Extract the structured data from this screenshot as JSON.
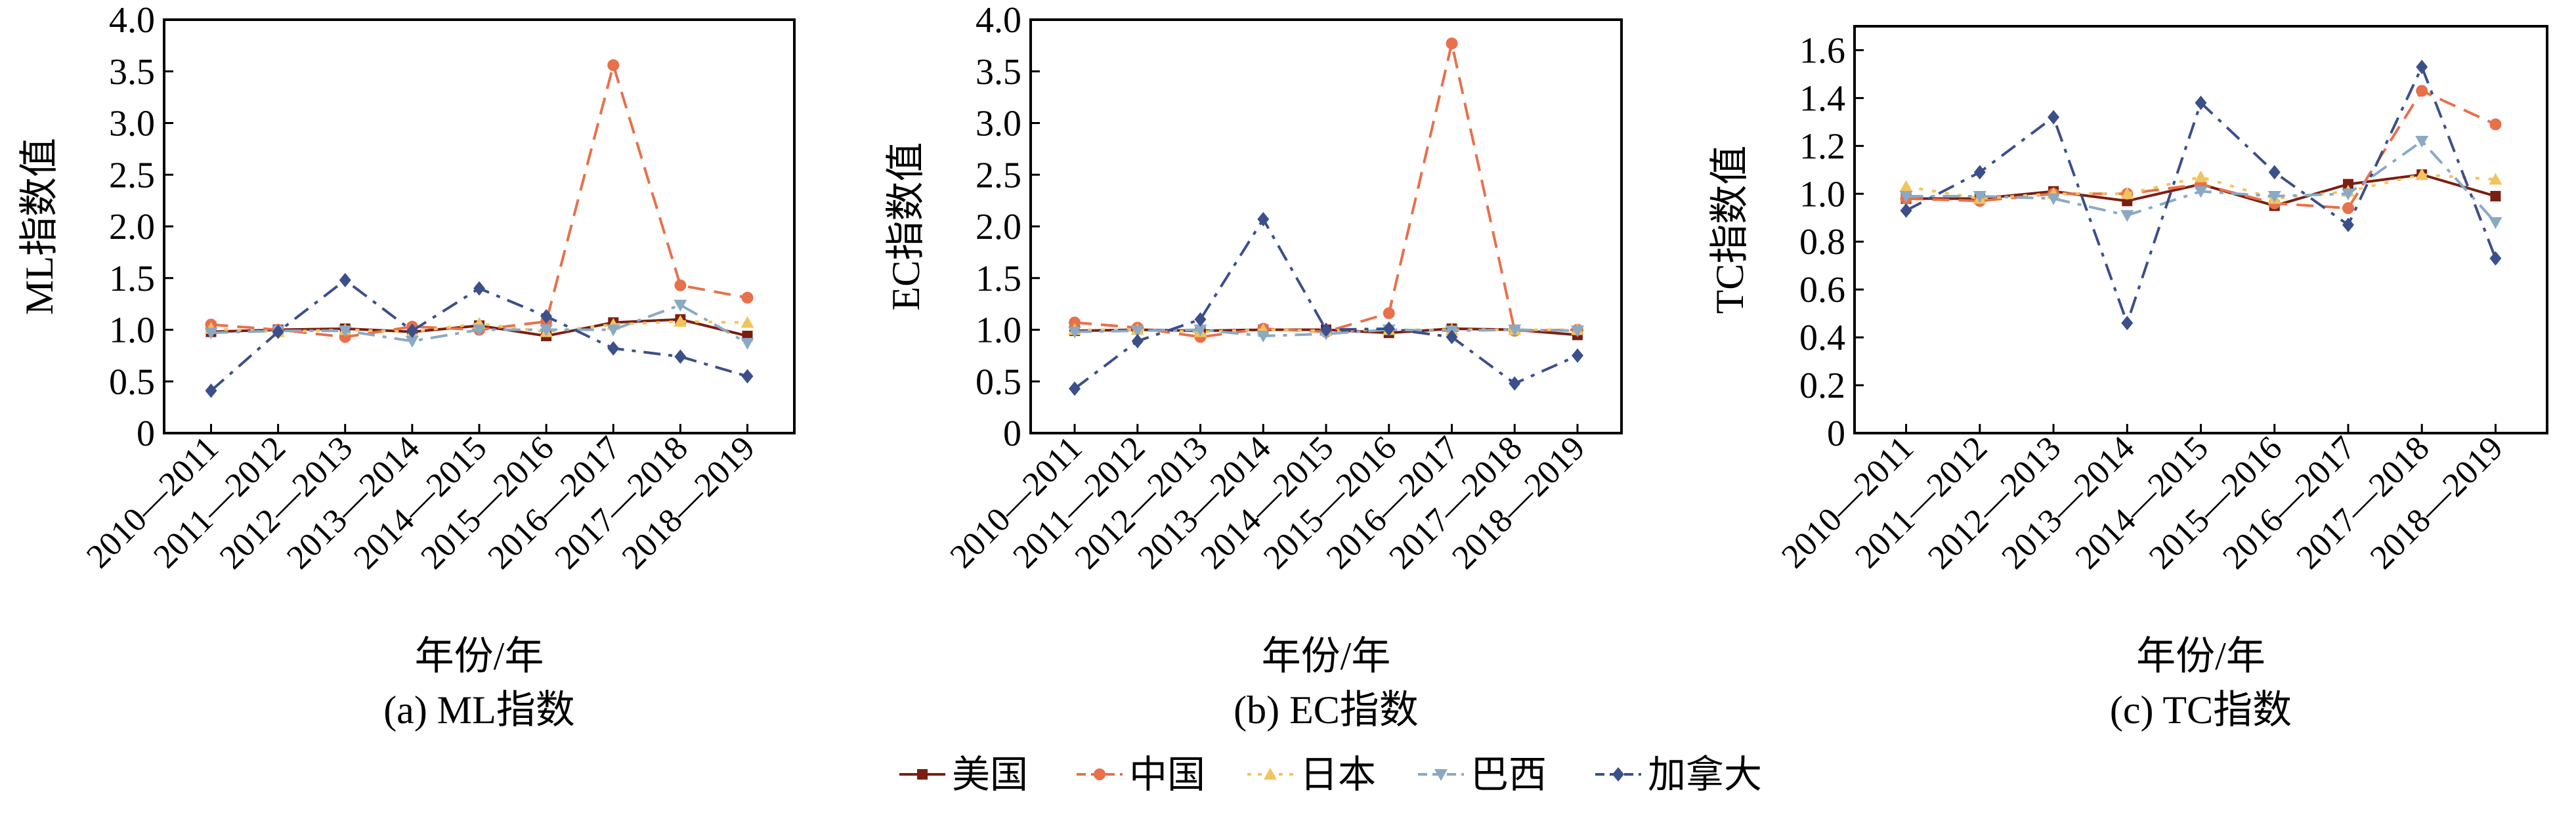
{
  "chart_data": [
    {
      "type": "line",
      "caption": "(a) ML指数",
      "xlabel": "年份/年",
      "ylabel": "ML指数值",
      "ylim": [
        0,
        4.0
      ],
      "yticks": [
        "0",
        "0.5",
        "1.0",
        "1.5",
        "2.0",
        "2.5",
        "3.0",
        "3.5",
        "4.0"
      ],
      "categories": [
        "2010—2011",
        "2011—2012",
        "2012—2013",
        "2013—2014",
        "2014—2015",
        "2015—2016",
        "2016—2017",
        "2017—2018",
        "2018—2019"
      ],
      "series": [
        {
          "name": "美国",
          "values": [
            0.98,
            1.0,
            1.01,
            0.98,
            1.04,
            0.94,
            1.07,
            1.1,
            0.94
          ]
        },
        {
          "name": "中国",
          "values": [
            1.05,
            1.0,
            0.93,
            1.03,
            1.0,
            1.08,
            3.56,
            1.43,
            1.31
          ]
        },
        {
          "name": "日本",
          "values": [
            1.01,
            0.98,
            1.0,
            0.98,
            1.06,
            0.98,
            1.05,
            1.08,
            1.07
          ]
        },
        {
          "name": "巴西",
          "values": [
            0.97,
            0.99,
            0.99,
            0.89,
            1.0,
            1.0,
            1.0,
            1.24,
            0.87
          ]
        },
        {
          "name": "加拿大",
          "values": [
            0.41,
            0.98,
            1.48,
            0.99,
            1.4,
            1.13,
            0.82,
            0.74,
            0.55
          ]
        }
      ]
    },
    {
      "type": "line",
      "caption": "(b) EC指数",
      "xlabel": "年份/年",
      "ylabel": "EC指数值",
      "ylim": [
        0,
        4.0
      ],
      "yticks": [
        "0",
        "0.5",
        "1.0",
        "1.5",
        "2.0",
        "2.5",
        "3.0",
        "3.5",
        "4.0"
      ],
      "categories": [
        "2010—2011",
        "2011—2012",
        "2012—2013",
        "2013—2014",
        "2014—2015",
        "2015—2016",
        "2016—2017",
        "2017—2018",
        "2018—2019"
      ],
      "series": [
        {
          "name": "美国",
          "values": [
            0.99,
            1.0,
            0.99,
            1.0,
            1.0,
            0.97,
            1.01,
            1.0,
            0.95
          ]
        },
        {
          "name": "中国",
          "values": [
            1.07,
            1.02,
            0.93,
            1.01,
            0.98,
            1.16,
            3.77,
            0.99,
            1.0
          ]
        },
        {
          "name": "日本",
          "values": [
            1.0,
            1.0,
            0.98,
            1.0,
            0.99,
            1.0,
            1.0,
            1.0,
            1.0
          ]
        },
        {
          "name": "巴西",
          "values": [
            0.98,
            0.99,
            1.0,
            0.94,
            0.96,
            1.0,
            0.99,
            1.0,
            0.99
          ]
        },
        {
          "name": "加拿大",
          "values": [
            0.43,
            0.89,
            1.1,
            2.07,
            1.0,
            1.01,
            0.93,
            0.48,
            0.75
          ]
        }
      ]
    },
    {
      "type": "line",
      "caption": "(c) TC指数",
      "xlabel": "年份/年",
      "ylabel": "TC指数值",
      "ylim": [
        0,
        1.7
      ],
      "yticks": [
        "0",
        "0.2",
        "0.4",
        "0.6",
        "0.8",
        "1.0",
        "1.2",
        "1.4",
        "1.6"
      ],
      "categories": [
        "2010—2011",
        "2011—2012",
        "2012—2013",
        "2013—2014",
        "2014—2015",
        "2015—2016",
        "2016—2017",
        "2017—2018",
        "2018—2019"
      ],
      "series": [
        {
          "name": "美国",
          "values": [
            0.98,
            0.98,
            1.01,
            0.97,
            1.04,
            0.95,
            1.04,
            1.08,
            0.99
          ]
        },
        {
          "name": "中国",
          "values": [
            0.98,
            0.97,
            1.0,
            1.0,
            1.04,
            0.96,
            0.94,
            1.43,
            1.29
          ]
        },
        {
          "name": "日本",
          "values": [
            1.03,
            0.98,
            1.0,
            1.0,
            1.07,
            0.98,
            1.01,
            1.08,
            1.06
          ]
        },
        {
          "name": "巴西",
          "values": [
            0.99,
            0.99,
            0.98,
            0.91,
            1.01,
            0.99,
            1.0,
            1.22,
            0.88
          ]
        },
        {
          "name": "加拿大",
          "values": [
            0.93,
            1.09,
            1.32,
            0.46,
            1.38,
            1.09,
            0.87,
            1.53,
            0.73
          ]
        }
      ]
    }
  ],
  "legend": [
    {
      "name": "美国",
      "color": "#7a1f12",
      "marker": "square",
      "dash": "solid"
    },
    {
      "name": "中国",
      "color": "#e8704a",
      "marker": "circle",
      "dash": "dashed"
    },
    {
      "name": "日本",
      "color": "#f2c45e",
      "marker": "triangle-up",
      "dash": "dotted"
    },
    {
      "name": "巴西",
      "color": "#8aa9c4",
      "marker": "triangle-down",
      "dash": "dashdot"
    },
    {
      "name": "加拿大",
      "color": "#3b4f8a",
      "marker": "diamond",
      "dash": "dashdot"
    }
  ]
}
